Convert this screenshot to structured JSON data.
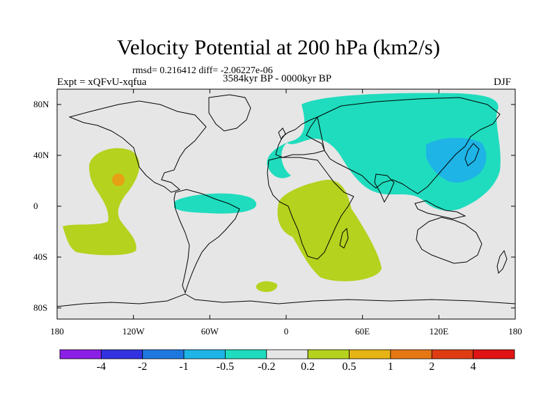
{
  "title": "Velocity Potential at 200 hPa (km2/s)",
  "stats": "rmsd= 0.216412 diff= -2.06227e-06",
  "experiment": "Expt = xQFvU-xqfua",
  "period": "3584kyr BP - 0000kyr BP",
  "season": "DJF",
  "x_ticks": [
    "180",
    "120W",
    "60W",
    "0",
    "60E",
    "120E",
    "180"
  ],
  "y_ticks": [
    "80N",
    "40N",
    "0",
    "40S",
    "80S"
  ],
  "colorbar": {
    "labels": [
      "-4",
      "-2",
      "-1",
      "-0.5",
      "-0.2",
      "0.2",
      "0.5",
      "1",
      "2",
      "4"
    ],
    "colors": [
      "#8b1fe6",
      "#3232e0",
      "#1f78e0",
      "#1eb4e6",
      "#1fdcbe",
      "#e6e6e6",
      "#b4d21e",
      "#e6b414",
      "#e67814",
      "#e03c14",
      "#e01414"
    ]
  },
  "colors": {
    "background": "#e6e6e6",
    "teal": "#1fdcbe",
    "cyan": "#1eb4e6",
    "lime": "#b4d21e",
    "orange": "#e6a014"
  }
}
